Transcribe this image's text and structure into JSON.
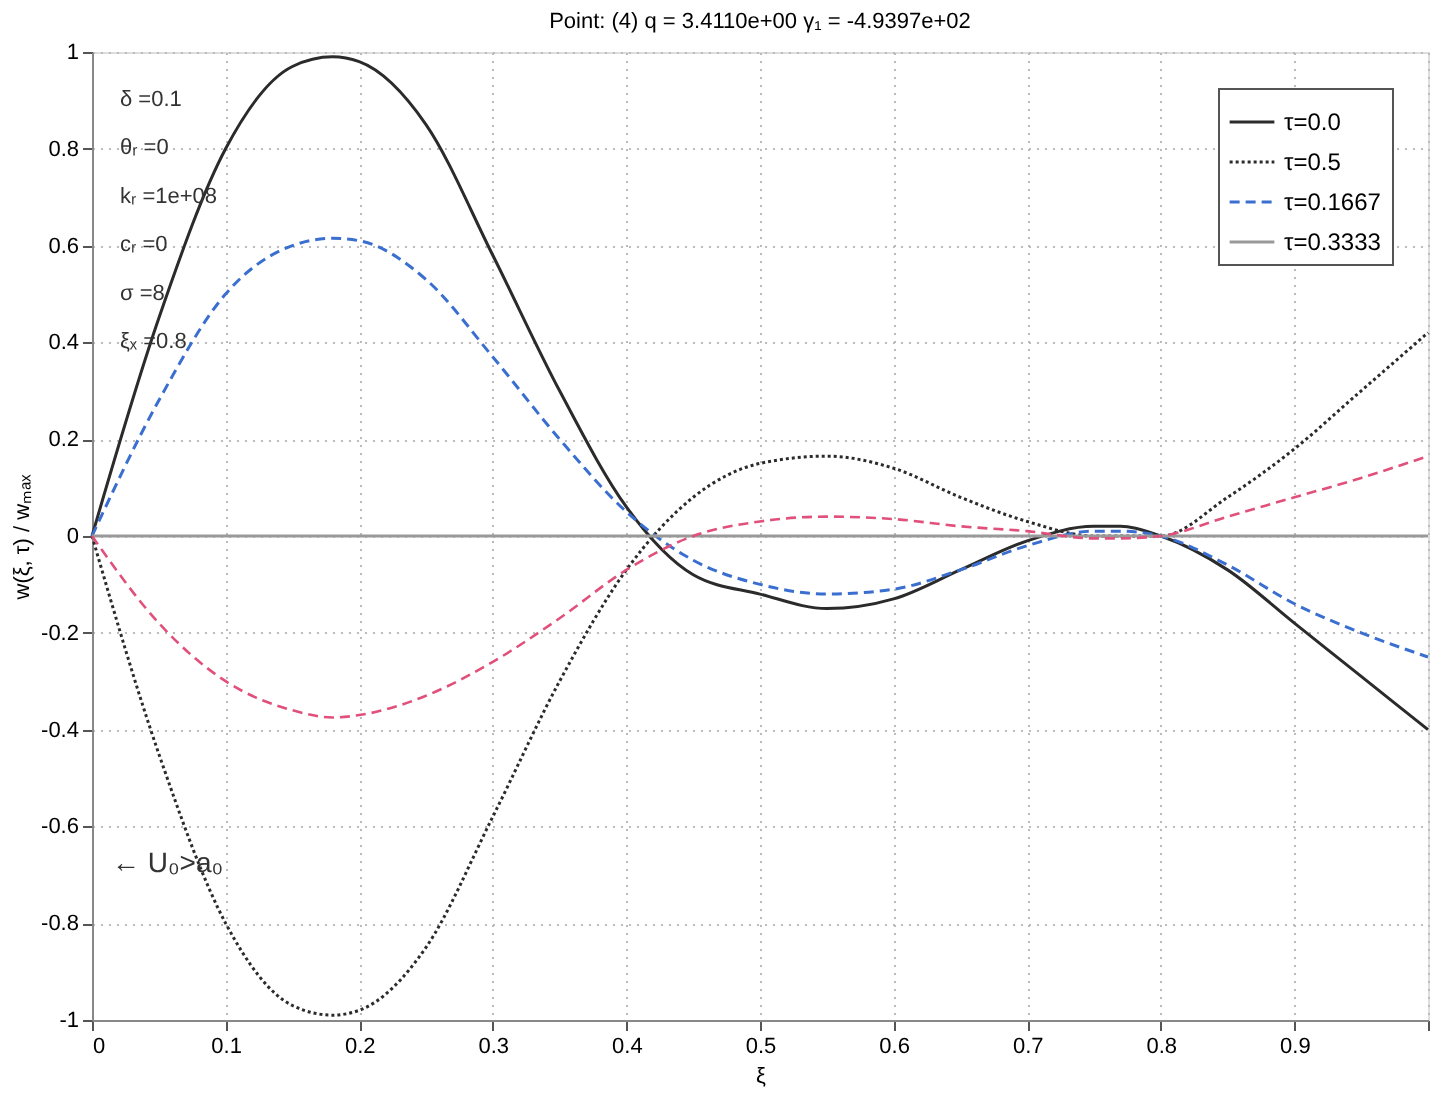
{
  "chart_data": {
    "type": "line",
    "title": "Point: (4)    q = 3.4110e+00    γ₁ = -4.9397e+02",
    "xlabel": "ξ",
    "ylabel": "w(ξ, τ) / wₘₐₓ",
    "x": [
      0,
      0.05,
      0.1,
      0.15,
      0.18,
      0.2,
      0.25,
      0.3,
      0.35,
      0.4,
      0.45,
      0.5,
      0.55,
      0.6,
      0.65,
      0.7,
      0.75,
      0.77,
      0.8,
      0.85,
      0.9,
      0.95,
      1
    ],
    "series": [
      {
        "name": "τ=0.0",
        "color": "#2b2b2b",
        "line_style": "solid",
        "values": [
          0,
          0.45,
          0.8,
          0.97,
          0.99,
          0.98,
          0.85,
          0.58,
          0.3,
          0.06,
          -0.08,
          -0.12,
          -0.15,
          -0.13,
          -0.07,
          -0.01,
          0.02,
          0.02,
          0.0,
          -0.07,
          -0.18,
          -0.29,
          -0.4
        ]
      },
      {
        "name": "τ=0.5",
        "color": "#2b2b2b",
        "line_style": "dotted",
        "values": [
          0,
          -0.45,
          -0.8,
          -0.97,
          -0.99,
          -0.98,
          -0.85,
          -0.58,
          -0.3,
          -0.07,
          0.08,
          0.15,
          0.165,
          0.14,
          0.08,
          0.03,
          0.0,
          0.0,
          0.0,
          0.08,
          0.18,
          0.3,
          0.42
        ]
      },
      {
        "name": "τ=0.1667",
        "color": "#3a6fd0",
        "line_style": "dashed",
        "values": [
          0,
          0.28,
          0.5,
          0.6,
          0.615,
          0.61,
          0.53,
          0.37,
          0.2,
          0.05,
          -0.05,
          -0.1,
          -0.12,
          -0.11,
          -0.07,
          -0.02,
          0.01,
          0.01,
          0.0,
          -0.06,
          -0.14,
          -0.2,
          -0.25
        ]
      },
      {
        "name": "τ=0.3333",
        "color": "#999999",
        "line_style": "solid",
        "values": [
          0,
          0,
          0,
          0,
          0,
          0,
          0,
          0,
          0,
          0,
          0,
          0,
          0,
          0,
          0,
          0,
          0,
          0,
          0,
          0,
          0,
          0,
          0
        ]
      },
      {
        "color": "#e0507a",
        "line_style": "dashed",
        "values": [
          0,
          -0.18,
          -0.3,
          -0.36,
          -0.375,
          -0.37,
          -0.33,
          -0.26,
          -0.17,
          -0.07,
          0.0,
          0.03,
          0.04,
          0.035,
          0.02,
          0.01,
          -0.005,
          -0.005,
          0.0,
          0.04,
          0.08,
          0.12,
          0.165
        ]
      }
    ],
    "xlim": [
      0,
      1
    ],
    "xticks": [
      0,
      0.1,
      0.2,
      0.3,
      0.4,
      0.5,
      0.6,
      0.7,
      0.8,
      0.9,
      {
        "value": 1,
        "label": null
      }
    ],
    "ylim": [
      -1,
      1
    ],
    "yticks": [
      -1,
      -0.8,
      -0.6,
      -0.4,
      -0.2,
      0,
      0.2,
      0.4,
      0.6,
      0.8,
      1
    ],
    "grid": true,
    "legend": "top right",
    "marker": "none",
    "annotations": [
      "δ =0.1",
      "θᵣ =0",
      "kᵣ =1e+08",
      "cᵣ =0",
      "σ =8",
      "ξₓ =0.8",
      "← U₀>a₀"
    ]
  }
}
